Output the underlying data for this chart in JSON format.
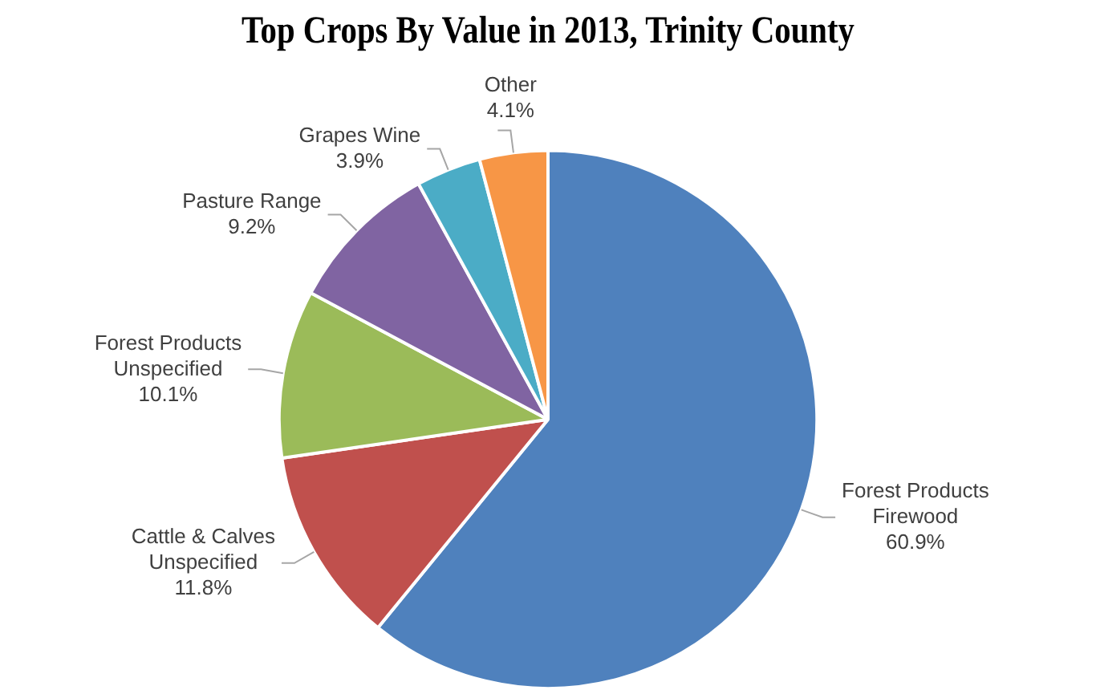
{
  "chart_data": {
    "type": "pie",
    "title": "Top Crops By Value in 2013, Trinity County",
    "categories": [
      "Forest Products Firewood",
      "Cattle & Calves Unspecified",
      "Forest Products Unspecified",
      "Pasture Range",
      "Grapes Wine",
      "Other"
    ],
    "values": [
      60.9,
      11.8,
      10.1,
      9.2,
      3.9,
      4.1
    ],
    "colors": [
      "#4f81bd",
      "#c0504d",
      "#9bbb59",
      "#8064a2",
      "#4bacc6",
      "#f79646"
    ],
    "value_labels": [
      "60.9%",
      "11.8%",
      "10.1%",
      "9.2%",
      "3.9%",
      "4.1%"
    ],
    "legend": false
  }
}
